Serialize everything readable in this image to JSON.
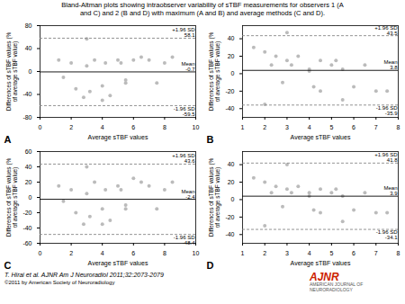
{
  "title": "Bland-Altman plots showing intraobserver variability of sTBF measurements for observers 1 (A\nand C) and 2 (B and D) with maximum (A and B) and average methods (C and D).",
  "annotations": [
    {
      "text": "T. Hirai et al. AJNR Am J Neuroradiol 2011;32:2073-2079",
      "color": "#000000"
    },
    {
      "text": "©2011 by American Society of Neuroradiology",
      "color": "#000000"
    },
    {
      "text": "AJNR",
      "color": "#cc2200"
    },
    {
      "text": "AMERICAN JOURNAL OF\nNEURORADIOLOGY",
      "color": "#555555"
    }
  ],
  "chart_data": [
    {
      "type": "scatter",
      "title": "A",
      "xlabel": "Average sTBF values",
      "ylabel": "Differences of sTBF values (% of average sTBF value)",
      "xlim": [
        0,
        10
      ],
      "ylim": [
        -80,
        80
      ],
      "xticks": [
        0,
        2,
        4,
        6,
        8,
        10
      ],
      "yticks": [
        -80,
        -40,
        0,
        40,
        80
      ],
      "grid": false,
      "color": "#bbbbbb",
      "x": [
        1.2,
        1.5,
        2.0,
        2.3,
        2.8,
        3.0,
        3.2,
        3.5,
        4.0,
        4.2,
        4.5,
        5.0,
        5.2,
        5.5,
        6.0,
        6.5,
        7.0,
        7.5,
        8.0,
        8.5,
        3.0,
        4.0,
        5.5
      ],
      "values": [
        20,
        -10,
        15,
        -30,
        -45,
        10,
        -35,
        20,
        -25,
        15,
        -42,
        20,
        15,
        -15,
        20,
        25,
        20,
        -20,
        15,
        25,
        57,
        -50,
        -20
      ],
      "lines": [
        {
          "value": -0.7,
          "label": "Mean\n-0.7",
          "color": "#000000",
          "line_style": "solid"
        },
        {
          "value": 58.1,
          "label": "+1.96 SD\n58.1",
          "color": "#888888",
          "line_style": "dashed"
        },
        {
          "value": -59.5,
          "label": "-1.96 SD\n-59.5",
          "color": "#888888",
          "line_style": "dashed"
        }
      ]
    },
    {
      "type": "scatter",
      "title": "B",
      "xlabel": "Average sTBF values",
      "ylabel": "Differences of sTBF values (% of average sTBF value)",
      "xlim": [
        1,
        8
      ],
      "ylim": [
        -50,
        55
      ],
      "xticks": [
        1,
        2,
        3,
        4,
        5,
        6,
        7,
        8
      ],
      "yticks": [
        -40,
        -20,
        0,
        20,
        40
      ],
      "grid": false,
      "color": "#bbbbbb",
      "x": [
        1.5,
        2.0,
        2.3,
        2.5,
        2.8,
        3.0,
        3.2,
        3.5,
        4.0,
        4.2,
        4.5,
        5.0,
        5.2,
        5.5,
        6.0,
        6.5,
        7.0,
        7.5,
        2.0,
        3.0,
        4.5,
        5.5,
        4.0
      ],
      "values": [
        30,
        25,
        10,
        20,
        -10,
        15,
        10,
        20,
        5,
        -15,
        -20,
        10,
        15,
        -30,
        -15,
        10,
        -20,
        -20,
        -35,
        47,
        15,
        5,
        3
      ],
      "lines": [
        {
          "value": 3.8,
          "label": "Mean\n3.8",
          "color": "#000000",
          "line_style": "solid"
        },
        {
          "value": 43.5,
          "label": "+1.96 SD\n43.5",
          "color": "#888888",
          "line_style": "dashed"
        },
        {
          "value": -35.9,
          "label": "-1.96 SD\n-35.9",
          "color": "#888888",
          "line_style": "dashed"
        }
      ]
    },
    {
      "type": "scatter",
      "title": "C",
      "xlabel": "Average sTBF values",
      "ylabel": "Differences of sTBF values (% of average sTBF value)",
      "xlim": [
        0,
        10
      ],
      "ylim": [
        -60,
        60
      ],
      "xticks": [
        0,
        2,
        4,
        6,
        8,
        10
      ],
      "yticks": [
        -60,
        -40,
        -20,
        0,
        20,
        40,
        60
      ],
      "grid": false,
      "color": "#bbbbbb",
      "x": [
        1.2,
        1.5,
        2.0,
        2.3,
        2.8,
        3.0,
        3.2,
        3.5,
        4.0,
        4.2,
        4.5,
        5.0,
        5.2,
        5.5,
        6.0,
        6.5,
        7.0,
        7.5,
        8.0,
        8.5,
        3.0,
        4.0,
        5.5
      ],
      "values": [
        15,
        -5,
        10,
        -20,
        -35,
        5,
        -25,
        20,
        -15,
        10,
        -30,
        15,
        10,
        -10,
        25,
        20,
        15,
        -15,
        10,
        20,
        40,
        -35,
        -15
      ],
      "lines": [
        {
          "value": -2.4,
          "label": "Mean\n-2.4",
          "color": "#000000",
          "line_style": "solid"
        },
        {
          "value": 43.6,
          "label": "+1.96 SD\n43.6",
          "color": "#888888",
          "line_style": "dashed"
        },
        {
          "value": -48.4,
          "label": "-1.96 SD\n-48.4",
          "color": "#888888",
          "line_style": "dashed"
        }
      ]
    },
    {
      "type": "scatter",
      "title": "D",
      "xlabel": "Average sTBF values",
      "ylabel": "Differences of sTBF values (% of average sTBF value)",
      "xlim": [
        1,
        8
      ],
      "ylim": [
        -50,
        55
      ],
      "xticks": [
        1,
        2,
        3,
        4,
        5,
        6,
        7,
        8
      ],
      "yticks": [
        -40,
        -20,
        0,
        20,
        40
      ],
      "grid": false,
      "color": "#bbbbbb",
      "x": [
        1.5,
        2.0,
        2.3,
        2.5,
        2.8,
        3.0,
        3.2,
        3.5,
        4.0,
        4.2,
        4.5,
        5.0,
        5.2,
        5.5,
        6.0,
        6.5,
        7.0,
        7.5,
        2.0,
        3.0,
        4.5,
        5.5,
        4.0
      ],
      "values": [
        25,
        20,
        8,
        15,
        -8,
        12,
        8,
        15,
        4,
        -12,
        -15,
        8,
        12,
        -25,
        -12,
        8,
        -15,
        -15,
        -30,
        40,
        12,
        4,
        8
      ],
      "lines": [
        {
          "value": 3.9,
          "label": "Mean\n3.9",
          "color": "#000000",
          "line_style": "solid"
        },
        {
          "value": 41.8,
          "label": "+1.96 SD\n41.8",
          "color": "#888888",
          "line_style": "dashed"
        },
        {
          "value": -34.1,
          "label": "-1.96 SD\n-34.1",
          "color": "#888888",
          "line_style": "dashed"
        }
      ]
    }
  ]
}
